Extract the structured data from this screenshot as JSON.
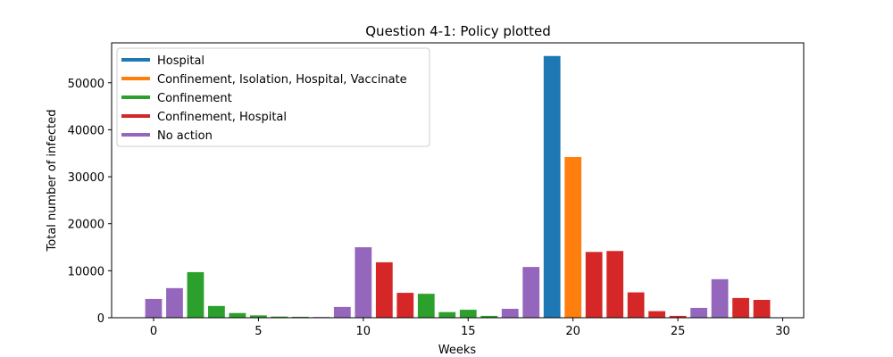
{
  "chart_data": {
    "type": "bar",
    "title": "Question 4-1: Policy plotted",
    "xlabel": "Weeks",
    "ylabel": "Total number of infected",
    "xlim": [
      -2,
      31
    ],
    "ylim": [
      0,
      58500
    ],
    "xticks": [
      0,
      5,
      10,
      15,
      20,
      25,
      30
    ],
    "yticks": [
      0,
      10000,
      20000,
      30000,
      40000,
      50000
    ],
    "grid": false,
    "legend_position": "top-left",
    "policies": [
      {
        "name": "Hospital",
        "color": "#1f77b4"
      },
      {
        "name": "Confinement, Isolation, Hospital, Vaccinate",
        "color": "#ff7f0e"
      },
      {
        "name": "Confinement",
        "color": "#2ca02c"
      },
      {
        "name": "Confinement, Hospital",
        "color": "#d62728"
      },
      {
        "name": "No action",
        "color": "#9467bd"
      }
    ],
    "bars": [
      {
        "x": 0,
        "value": 4000,
        "policy": 4
      },
      {
        "x": 1,
        "value": 6300,
        "policy": 4
      },
      {
        "x": 2,
        "value": 9700,
        "policy": 2
      },
      {
        "x": 3,
        "value": 2500,
        "policy": 2
      },
      {
        "x": 4,
        "value": 1000,
        "policy": 2
      },
      {
        "x": 5,
        "value": 500,
        "policy": 2
      },
      {
        "x": 6,
        "value": 250,
        "policy": 2
      },
      {
        "x": 7,
        "value": 200,
        "policy": 2
      },
      {
        "x": 8,
        "value": 150,
        "policy": 4
      },
      {
        "x": 9,
        "value": 2300,
        "policy": 4
      },
      {
        "x": 10,
        "value": 15000,
        "policy": 4
      },
      {
        "x": 11,
        "value": 11800,
        "policy": 3
      },
      {
        "x": 12,
        "value": 5300,
        "policy": 3
      },
      {
        "x": 13,
        "value": 5100,
        "policy": 2
      },
      {
        "x": 14,
        "value": 1200,
        "policy": 2
      },
      {
        "x": 15,
        "value": 1700,
        "policy": 2
      },
      {
        "x": 16,
        "value": 400,
        "policy": 2
      },
      {
        "x": 17,
        "value": 1900,
        "policy": 4
      },
      {
        "x": 18,
        "value": 10800,
        "policy": 4
      },
      {
        "x": 19,
        "value": 55700,
        "policy": 0
      },
      {
        "x": 20,
        "value": 34200,
        "policy": 1
      },
      {
        "x": 21,
        "value": 14000,
        "policy": 3
      },
      {
        "x": 22,
        "value": 14200,
        "policy": 3
      },
      {
        "x": 23,
        "value": 5400,
        "policy": 3
      },
      {
        "x": 24,
        "value": 1400,
        "policy": 3
      },
      {
        "x": 25,
        "value": 400,
        "policy": 3
      },
      {
        "x": 26,
        "value": 2100,
        "policy": 4
      },
      {
        "x": 27,
        "value": 8200,
        "policy": 4
      },
      {
        "x": 28,
        "value": 4200,
        "policy": 3
      },
      {
        "x": 29,
        "value": 3800,
        "policy": 3
      }
    ]
  }
}
